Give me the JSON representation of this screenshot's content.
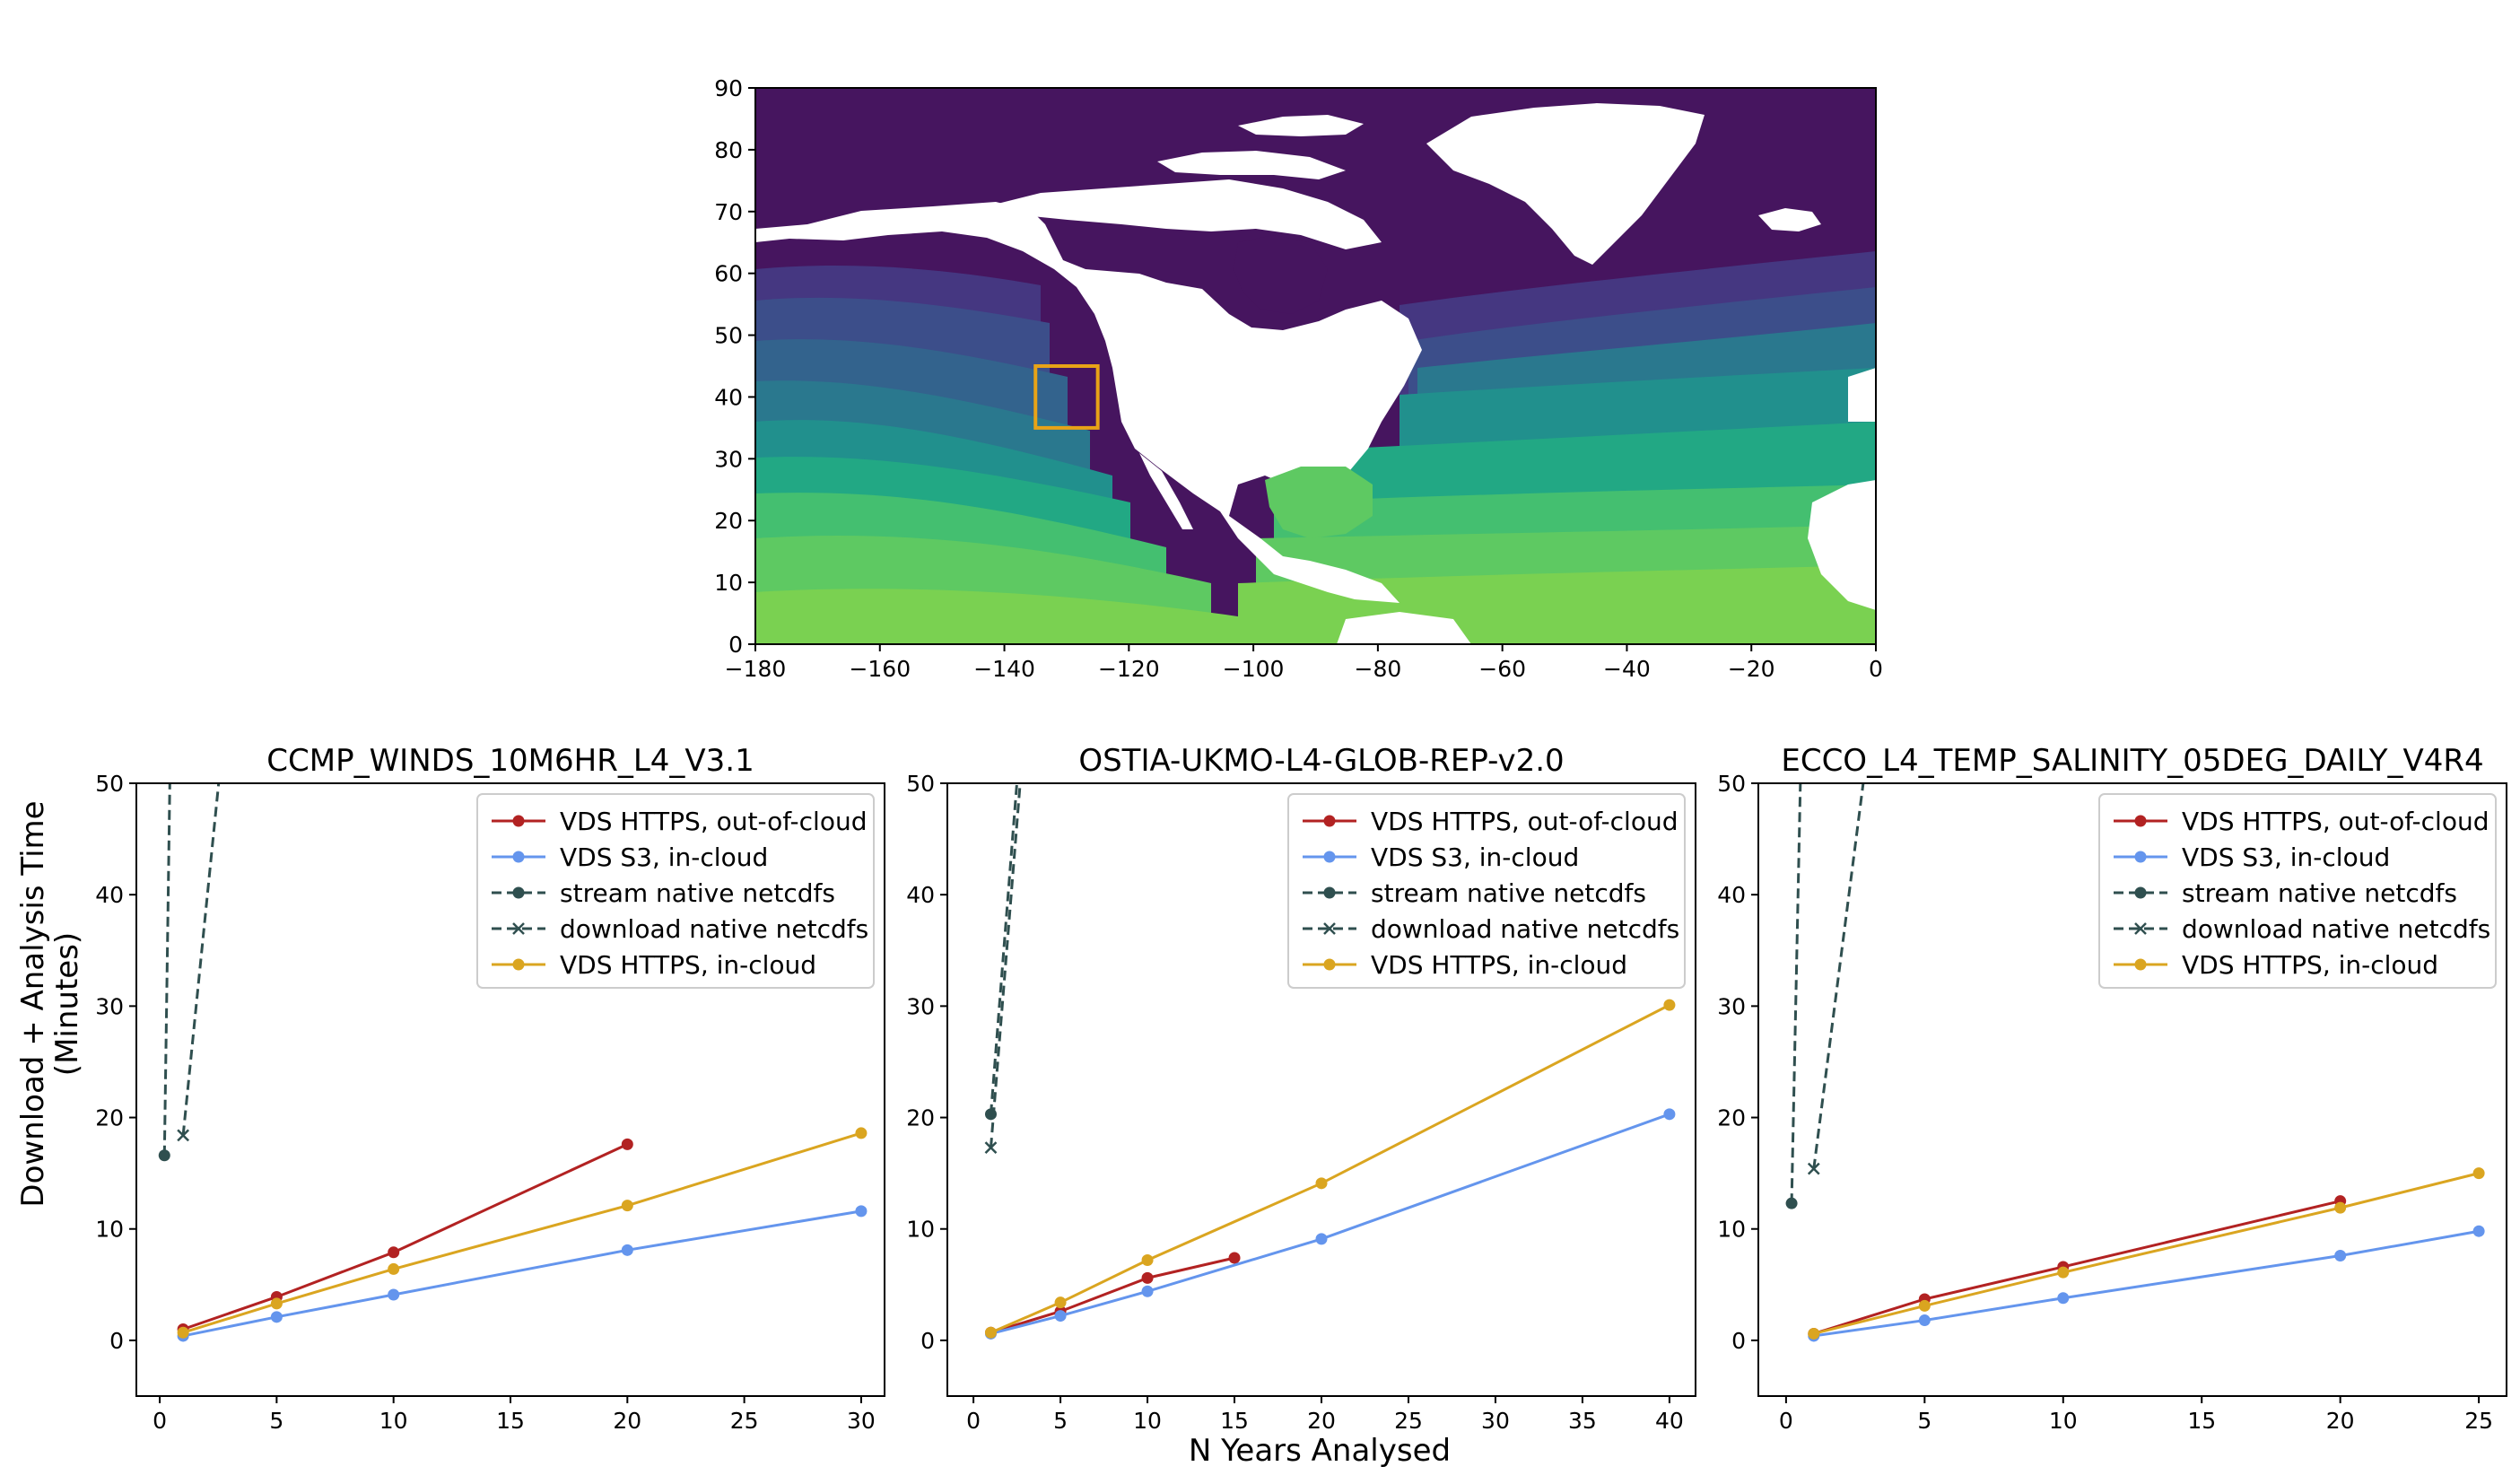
{
  "map_panel": {
    "xticks": [
      "−180",
      "−160",
      "−140",
      "−120",
      "−100",
      "−80",
      "−60",
      "−40",
      "−20",
      "0"
    ],
    "yticks": [
      "0",
      "10",
      "20",
      "30",
      "40",
      "50",
      "60",
      "70",
      "80",
      "90"
    ],
    "xlim": [
      -180,
      0
    ],
    "ylim": [
      0,
      90
    ],
    "colormap": "viridis",
    "land_color": "#ffffff",
    "highlight_box": {
      "lon": [
        -135,
        -125
      ],
      "lat": [
        35,
        45
      ],
      "color": "#e8a317"
    }
  },
  "figure": {
    "shared_xlabel": "N Years Analysed",
    "shared_ylabel_line1": "Download + Analysis Time",
    "shared_ylabel_line2": "(Minutes)"
  },
  "chart_data": [
    {
      "type": "line",
      "title": "CCMP_WINDS_10M6HR_L4_V3.1",
      "xlim": [
        -1,
        31
      ],
      "ylim": [
        -5,
        50
      ],
      "xticks": [
        0,
        5,
        10,
        15,
        20,
        25,
        30
      ],
      "yticks": [
        0,
        10,
        20,
        30,
        40,
        50
      ],
      "legend_position": "top-right",
      "series": [
        {
          "name": "VDS HTTPS, out-of-cloud",
          "color": "#b22222",
          "marker": "o",
          "dash": false,
          "x": [
            1,
            5,
            10,
            20
          ],
          "y": [
            1.0,
            3.9,
            7.9,
            17.6
          ]
        },
        {
          "name": "VDS S3, in-cloud",
          "color": "#6495ed",
          "marker": "o",
          "dash": false,
          "x": [
            1,
            5,
            10,
            20,
            30
          ],
          "y": [
            0.4,
            2.1,
            4.1,
            8.1,
            11.6
          ]
        },
        {
          "name": "stream native netcdfs",
          "color": "#2f4f4f",
          "marker": "o",
          "dash": true,
          "x": [
            0.2,
            0.5
          ],
          "y": [
            16.6,
            60
          ]
        },
        {
          "name": "download native netcdfs",
          "color": "#2f4f4f",
          "marker": "x",
          "dash": true,
          "x": [
            1,
            3
          ],
          "y": [
            18.4,
            60
          ]
        },
        {
          "name": "VDS HTTPS, in-cloud",
          "color": "#daa520",
          "marker": "o",
          "dash": false,
          "x": [
            1,
            5,
            10,
            20,
            30
          ],
          "y": [
            0.7,
            3.3,
            6.4,
            12.1,
            18.6
          ]
        }
      ]
    },
    {
      "type": "line",
      "title": "OSTIA-UKMO-L4-GLOB-REP-v2.0",
      "xlim": [
        -1.5,
        41.5
      ],
      "ylim": [
        -5,
        50
      ],
      "xticks": [
        0,
        5,
        10,
        15,
        20,
        25,
        30,
        35,
        40
      ],
      "yticks": [
        0,
        10,
        20,
        30,
        40,
        50
      ],
      "legend_position": "top-right",
      "series": [
        {
          "name": "VDS HTTPS, out-of-cloud",
          "color": "#b22222",
          "marker": "o",
          "dash": false,
          "x": [
            1,
            5,
            10,
            15
          ],
          "y": [
            0.7,
            2.6,
            5.6,
            7.4
          ]
        },
        {
          "name": "VDS S3, in-cloud",
          "color": "#6495ed",
          "marker": "o",
          "dash": false,
          "x": [
            1,
            5,
            10,
            20,
            40
          ],
          "y": [
            0.6,
            2.2,
            4.4,
            9.1,
            20.3
          ]
        },
        {
          "name": "stream native netcdfs",
          "color": "#2f4f4f",
          "marker": "o",
          "dash": true,
          "x": [
            1,
            3
          ],
          "y": [
            20.3,
            60
          ]
        },
        {
          "name": "download native netcdfs",
          "color": "#2f4f4f",
          "marker": "x",
          "dash": true,
          "x": [
            1,
            3.2
          ],
          "y": [
            17.3,
            60
          ]
        },
        {
          "name": "VDS HTTPS, in-cloud",
          "color": "#daa520",
          "marker": "o",
          "dash": false,
          "x": [
            1,
            5,
            10,
            20,
            40
          ],
          "y": [
            0.7,
            3.4,
            7.2,
            14.1,
            30.1
          ]
        }
      ]
    },
    {
      "type": "line",
      "title": "ECCO_L4_TEMP_SALINITY_05DEG_DAILY_V4R4",
      "xlim": [
        -1,
        26
      ],
      "ylim": [
        -5,
        50
      ],
      "xticks": [
        0,
        5,
        10,
        15,
        20,
        25
      ],
      "yticks": [
        0,
        10,
        20,
        30,
        40,
        50
      ],
      "legend_position": "top-right",
      "series": [
        {
          "name": "VDS HTTPS, out-of-cloud",
          "color": "#b22222",
          "marker": "o",
          "dash": false,
          "x": [
            1,
            5,
            10,
            20
          ],
          "y": [
            0.6,
            3.7,
            6.6,
            12.5
          ]
        },
        {
          "name": "VDS S3, in-cloud",
          "color": "#6495ed",
          "marker": "o",
          "dash": false,
          "x": [
            1,
            5,
            10,
            20,
            25
          ],
          "y": [
            0.4,
            1.8,
            3.8,
            7.6,
            9.8
          ]
        },
        {
          "name": "stream native netcdfs",
          "color": "#2f4f4f",
          "marker": "o",
          "dash": true,
          "x": [
            0.2,
            0.6
          ],
          "y": [
            12.3,
            60
          ]
        },
        {
          "name": "download native netcdfs",
          "color": "#2f4f4f",
          "marker": "x",
          "dash": true,
          "x": [
            1,
            3.3
          ],
          "y": [
            15.4,
            60
          ]
        },
        {
          "name": "VDS HTTPS, in-cloud",
          "color": "#daa520",
          "marker": "o",
          "dash": false,
          "x": [
            1,
            5,
            10,
            20,
            25
          ],
          "y": [
            0.6,
            3.1,
            6.1,
            11.9,
            15.0
          ]
        }
      ]
    }
  ]
}
